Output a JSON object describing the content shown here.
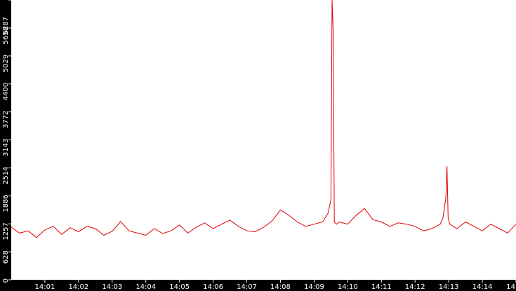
{
  "chart_data": {
    "type": "line",
    "title": "",
    "xlabel": "",
    "ylabel": "",
    "ylim": [
      0,
      6287
    ],
    "y_ticks": [
      0,
      628,
      1257,
      1886,
      2514,
      3143,
      3772,
      4400,
      5029,
      5658,
      6287
    ],
    "y_tick_labels": [
      "0",
      "628",
      "1257",
      "1886",
      "2514",
      "3143",
      "3772",
      "4400",
      "5029",
      "5658",
      "6287"
    ],
    "x_range": [
      "14:00",
      "14:15"
    ],
    "x_tick_labels": [
      "14:01",
      "14:02",
      "14:03",
      "14:04",
      "14:05",
      "14:06",
      "14:07",
      "14:08",
      "14:09",
      "14:10",
      "14:11",
      "14:12",
      "14:13",
      "14:14",
      "14"
    ],
    "grid": false,
    "colors": {
      "line": "#e00000",
      "axis_band": "#000000",
      "tick_label": "#ffffff",
      "background": "#ffffff"
    },
    "series": [
      {
        "x": [
          "14:00:00",
          "14:00:15",
          "14:00:30",
          "14:00:45",
          "14:01:00",
          "14:01:15",
          "14:01:30",
          "14:01:45",
          "14:02:00",
          "14:02:15",
          "14:02:30",
          "14:02:45",
          "14:03:00",
          "14:03:15",
          "14:03:30",
          "14:03:45",
          "14:04:00",
          "14:04:15",
          "14:04:30",
          "14:04:45",
          "14:05:00",
          "14:05:15",
          "14:05:30",
          "14:05:45",
          "14:06:00",
          "14:06:15",
          "14:06:30",
          "14:06:45",
          "14:07:00",
          "14:07:15",
          "14:07:30",
          "14:07:45",
          "14:08:00",
          "14:08:15",
          "14:08:30",
          "14:08:45",
          "14:09:00",
          "14:09:15",
          "14:09:25",
          "14:09:30",
          "14:09:32",
          "14:09:34",
          "14:09:36",
          "14:09:40",
          "14:09:45",
          "14:10:00",
          "14:10:15",
          "14:10:30",
          "14:10:45",
          "14:11:00",
          "14:11:15",
          "14:11:30",
          "14:11:45",
          "14:12:00",
          "14:12:15",
          "14:12:30",
          "14:12:45",
          "14:12:50",
          "14:12:55",
          "14:12:57",
          "14:12:59",
          "14:13:02",
          "14:13:15",
          "14:13:30",
          "14:13:45",
          "14:14:00",
          "14:14:15",
          "14:14:30",
          "14:14:45",
          "14:15:00"
        ],
        "y": [
          1180,
          1050,
          1100,
          950,
          1120,
          1200,
          1020,
          1170,
          1080,
          1200,
          1150,
          1000,
          1090,
          1310,
          1100,
          1050,
          1000,
          1150,
          1040,
          1100,
          1230,
          1050,
          1180,
          1280,
          1150,
          1250,
          1340,
          1200,
          1100,
          1080,
          1180,
          1320,
          1570,
          1450,
          1300,
          1200,
          1250,
          1300,
          1500,
          1800,
          6287,
          5600,
          1300,
          1250,
          1300,
          1250,
          1450,
          1600,
          1350,
          1300,
          1200,
          1280,
          1250,
          1200,
          1100,
          1150,
          1250,
          1400,
          1850,
          2550,
          1400,
          1250,
          1150,
          1300,
          1200,
          1100,
          1250,
          1150,
          1050,
          1250
        ]
      }
    ]
  }
}
